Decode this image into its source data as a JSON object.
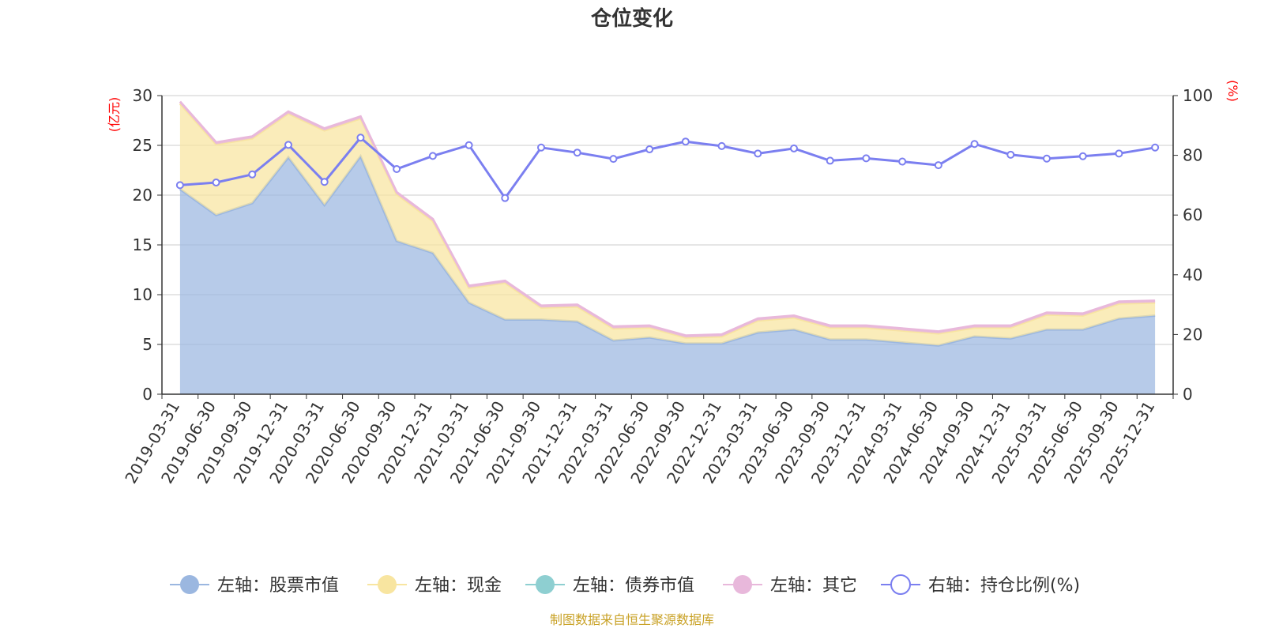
{
  "chart_data": {
    "type": "area",
    "title": "仓位变化",
    "left_axis": {
      "unit": "(亿元)",
      "ylim": [
        0,
        30
      ],
      "ticks": [
        0,
        5,
        10,
        15,
        20,
        25,
        30
      ]
    },
    "right_axis": {
      "unit": "(%)",
      "ylim": [
        0,
        100
      ],
      "ticks": [
        0,
        20,
        40,
        60,
        80,
        100
      ]
    },
    "categories": [
      "2019-03-31",
      "2019-06-30",
      "2019-09-30",
      "2019-12-31",
      "2020-03-31",
      "2020-06-30",
      "2020-09-30",
      "2020-12-31",
      "2021-03-31",
      "2021-06-30",
      "2021-09-30",
      "2021-12-31",
      "2022-03-31",
      "2022-06-30",
      "2022-09-30",
      "2022-12-31",
      "2023-03-31",
      "2023-06-30",
      "2023-09-30",
      "2023-12-31",
      "2024-03-31",
      "2024-06-30",
      "2024-09-30",
      "2024-12-31",
      "2025-03-31",
      "2025-06-30",
      "2025-09-30",
      "2025-12-31"
    ],
    "series": [
      {
        "name": "左轴：股票市值",
        "axis": "left",
        "color": "#9bb7e0",
        "values": [
          20.6,
          18.0,
          19.2,
          23.8,
          19.0,
          23.9,
          15.4,
          14.2,
          9.2,
          7.5,
          7.5,
          7.3,
          5.4,
          5.7,
          5.1,
          5.1,
          6.2,
          6.5,
          5.5,
          5.5,
          5.2,
          4.9,
          5.8,
          5.6,
          6.5,
          6.5,
          7.6,
          7.9
        ]
      },
      {
        "name": "左轴：现金",
        "axis": "left",
        "color": "#f8e5a0",
        "values": [
          8.6,
          7.1,
          6.5,
          4.4,
          7.5,
          3.8,
          4.7,
          3.2,
          1.5,
          3.7,
          1.2,
          1.5,
          1.2,
          1.0,
          0.6,
          0.7,
          1.2,
          1.2,
          1.2,
          1.2,
          1.2,
          1.2,
          0.9,
          1.1,
          1.5,
          1.4,
          1.5,
          1.3
        ]
      },
      {
        "name": "左轴：债券市值",
        "axis": "left",
        "color": "#8ecfd1",
        "values": [
          0,
          0,
          0,
          0,
          0,
          0,
          0,
          0,
          0,
          0,
          0,
          0,
          0,
          0,
          0,
          0,
          0,
          0,
          0,
          0,
          0,
          0,
          0,
          0,
          0,
          0,
          0,
          0
        ]
      },
      {
        "name": "左轴：其它",
        "axis": "left",
        "color": "#e8b8db",
        "values": [
          0.2,
          0.2,
          0.2,
          0.2,
          0.2,
          0.2,
          0.2,
          0.2,
          0.2,
          0.2,
          0.2,
          0.2,
          0.2,
          0.2,
          0.2,
          0.2,
          0.2,
          0.2,
          0.2,
          0.2,
          0.2,
          0.2,
          0.2,
          0.2,
          0.2,
          0.2,
          0.2,
          0.2
        ]
      },
      {
        "name": "右轴：持仓比例(%)",
        "axis": "right",
        "color": "#7b7ff0",
        "values": [
          70.0,
          70.9,
          73.6,
          83.5,
          71.1,
          85.9,
          75.4,
          79.8,
          83.4,
          65.7,
          82.6,
          80.9,
          78.8,
          82.0,
          84.6,
          83.1,
          80.6,
          82.3,
          78.2,
          79.0,
          77.9,
          76.7,
          83.8,
          80.2,
          78.9,
          79.7,
          80.6,
          82.6
        ]
      }
    ],
    "legend_position": "bottom-center"
  },
  "source": "制图数据来自恒生聚源数据库",
  "colors": {
    "axis_unit": "#ff0000",
    "source": "#c9a227",
    "grid": "#cccccc",
    "axis": "#333333"
  }
}
